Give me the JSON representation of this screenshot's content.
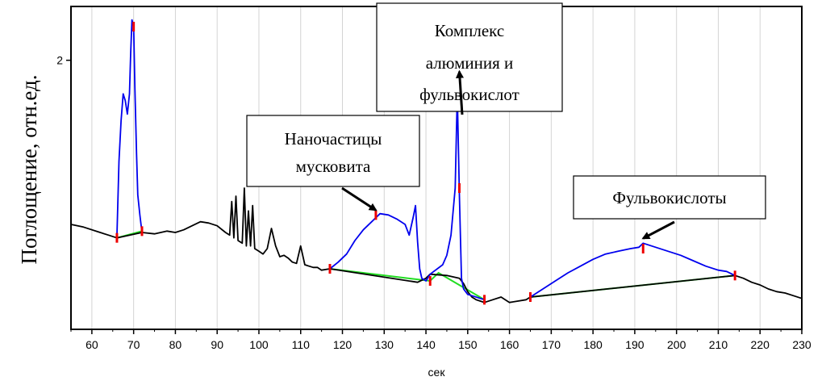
{
  "chart_data": {
    "type": "line",
    "xlabel": "сек",
    "ylabel": "Поглощение, отн.ед.",
    "xlim": [
      55,
      230
    ],
    "x_ticks": [
      60,
      70,
      80,
      90,
      100,
      110,
      120,
      130,
      140,
      150,
      160,
      170,
      180,
      190,
      200,
      210,
      220,
      230
    ],
    "x_tick_labels": [
      "60",
      "70",
      "80",
      "90",
      "100",
      "110",
      "120",
      "130",
      "140",
      "150",
      "160",
      "170",
      "180",
      "190",
      "200",
      "210",
      "220",
      "230"
    ],
    "ylim": [
      0,
      2.4
    ],
    "y_ticks": [
      2
    ],
    "y_tick_labels": [
      "2"
    ],
    "grid": "vertical, light gray",
    "colors": {
      "signal": "#000000",
      "peak": "#0000ee",
      "baseline": "#22dd22",
      "marker": "#ee0000",
      "arrow": "#000000"
    },
    "series": [
      {
        "role": "signal",
        "x": [
          55,
          58,
          62,
          64,
          66,
          72,
          75,
          78,
          80,
          82,
          84,
          86,
          88,
          90,
          92,
          93,
          93.5,
          94,
          94.5,
          95,
          96,
          96.5,
          97,
          97.5,
          98,
          98.5,
          99,
          100,
          101,
          102,
          103,
          104,
          105,
          106,
          107,
          108,
          109,
          110,
          111,
          112,
          113,
          114,
          115,
          117,
          138,
          140,
          141,
          145,
          148,
          149,
          150,
          151,
          152,
          153,
          154,
          156,
          158,
          160,
          162,
          164,
          165,
          214,
          216,
          218,
          220,
          222,
          224,
          226,
          228,
          230
        ],
        "y": [
          0.78,
          0.76,
          0.72,
          0.7,
          0.68,
          0.72,
          0.71,
          0.73,
          0.72,
          0.74,
          0.77,
          0.8,
          0.79,
          0.77,
          0.72,
          0.7,
          0.95,
          0.68,
          0.99,
          0.66,
          0.64,
          1.05,
          0.62,
          0.88,
          0.62,
          0.92,
          0.6,
          0.58,
          0.56,
          0.6,
          0.75,
          0.62,
          0.54,
          0.55,
          0.53,
          0.5,
          0.49,
          0.62,
          0.48,
          0.47,
          0.46,
          0.46,
          0.44,
          0.45,
          0.35,
          0.38,
          0.41,
          0.4,
          0.38,
          0.34,
          0.28,
          0.24,
          0.22,
          0.21,
          0.2,
          0.22,
          0.24,
          0.2,
          0.21,
          0.22,
          0.24,
          0.4,
          0.38,
          0.35,
          0.33,
          0.3,
          0.28,
          0.27,
          0.25,
          0.23
        ]
      },
      {
        "role": "peak",
        "x": [
          66,
          66.5,
          67,
          67.5,
          68,
          68.5,
          69,
          69.3,
          69.6,
          70,
          70.3,
          70.7,
          71,
          71.5,
          72
        ],
        "y": [
          0.68,
          1.25,
          1.55,
          1.75,
          1.7,
          1.6,
          1.75,
          2.05,
          2.3,
          2.25,
          1.8,
          1.3,
          1.0,
          0.85,
          0.72
        ]
      },
      {
        "role": "peak",
        "x": [
          117,
          119,
          121,
          123,
          125,
          127,
          129,
          131,
          133,
          135,
          136,
          137,
          137.5,
          138,
          138.5,
          139,
          140,
          141
        ],
        "y": [
          0.45,
          0.5,
          0.56,
          0.66,
          0.74,
          0.8,
          0.86,
          0.85,
          0.82,
          0.78,
          0.7,
          0.84,
          0.92,
          0.65,
          0.45,
          0.38,
          0.36,
          0.41
        ]
      },
      {
        "role": "peak",
        "x": [
          141,
          144,
          145,
          146,
          147,
          147.5,
          148,
          148.5,
          149,
          150,
          151,
          153,
          154
        ],
        "y": [
          0.41,
          0.48,
          0.55,
          0.7,
          1.05,
          1.75,
          1.0,
          0.38,
          0.3,
          0.26,
          0.25,
          0.23,
          0.22
        ]
      },
      {
        "role": "peak",
        "x": [
          165,
          168,
          171,
          174,
          177,
          180,
          183,
          186,
          189,
          191,
          192,
          195,
          198,
          201,
          204,
          207,
          210,
          212,
          214
        ],
        "y": [
          0.24,
          0.3,
          0.36,
          0.42,
          0.47,
          0.52,
          0.56,
          0.58,
          0.6,
          0.61,
          0.64,
          0.61,
          0.58,
          0.55,
          0.51,
          0.47,
          0.44,
          0.43,
          0.4
        ]
      }
    ],
    "baselines": [
      {
        "x": [
          66,
          72
        ],
        "y": [
          0.68,
          0.73
        ]
      },
      {
        "x": [
          117,
          141,
          143,
          154
        ],
        "y": [
          0.45,
          0.36,
          0.42,
          0.22
        ]
      },
      {
        "x": [
          165,
          214
        ],
        "y": [
          0.24,
          0.4
        ]
      }
    ],
    "markers": [
      {
        "x": 66,
        "y": 0.68
      },
      {
        "x": 70,
        "y": 2.25
      },
      {
        "x": 72,
        "y": 0.73
      },
      {
        "x": 117,
        "y": 0.45
      },
      {
        "x": 128,
        "y": 0.85
      },
      {
        "x": 141,
        "y": 0.36
      },
      {
        "x": 148,
        "y": 1.05
      },
      {
        "x": 154,
        "y": 0.22
      },
      {
        "x": 165,
        "y": 0.24
      },
      {
        "x": 192,
        "y": 0.6
      },
      {
        "x": 214,
        "y": 0.4
      }
    ],
    "annotations": [
      {
        "lines": [
          "Наночастицы",
          "мусковита"
        ],
        "arrow_to": {
          "x": 128,
          "y": 0.85
        }
      },
      {
        "lines": [
          "Комплекс",
          "алюминия и",
          "фульвокислот"
        ],
        "arrow_to": {
          "x": 148,
          "y": 1.88
        }
      },
      {
        "lines": [
          "Фульвокислоты"
        ],
        "arrow_to": {
          "x": 192,
          "y": 0.64
        }
      }
    ]
  }
}
